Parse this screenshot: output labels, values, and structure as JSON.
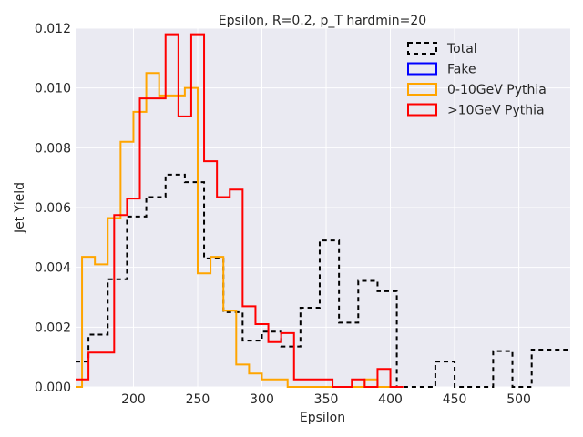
{
  "chart_data": {
    "type": "line",
    "title": "Epsilon, R=0.2, p_T hardmin=20",
    "xlabel": "Epsilon",
    "ylabel": "Jet Yield",
    "xlim": [
      155,
      540
    ],
    "ylim": [
      0,
      0.012
    ],
    "x_ticks": [
      200,
      250,
      300,
      350,
      400,
      450,
      500
    ],
    "y_ticks": [
      "0.000",
      "0.002",
      "0.004",
      "0.006",
      "0.008",
      "0.010",
      "0.012"
    ],
    "grid": true,
    "legend_position": "top-right",
    "series": [
      {
        "name": "Total",
        "color": "#000000",
        "style": "dashed",
        "steps": [
          [
            155,
            0.00085
          ],
          [
            165,
            0.00175
          ],
          [
            180,
            0.0036
          ],
          [
            195,
            0.0057
          ],
          [
            210,
            0.00635
          ],
          [
            225,
            0.0071
          ],
          [
            240,
            0.00685
          ],
          [
            255,
            0.0043
          ],
          [
            270,
            0.0025
          ],
          [
            285,
            0.00155
          ],
          [
            300,
            0.00185
          ],
          [
            315,
            0.00135
          ],
          [
            330,
            0.00265
          ],
          [
            345,
            0.0049
          ],
          [
            360,
            0.00215
          ],
          [
            375,
            0.00355
          ],
          [
            390,
            0.0032
          ],
          [
            405,
            0.0
          ],
          [
            420,
            0.0
          ],
          [
            435,
            0.00085
          ],
          [
            450,
            0.0
          ],
          [
            465,
            0.0
          ],
          [
            480,
            0.0012
          ],
          [
            495,
            0.0
          ],
          [
            510,
            0.00125
          ],
          [
            525,
            0.00125
          ],
          [
            540,
            0.00125
          ]
        ]
      },
      {
        "name": "Fake",
        "color": "#0000ff",
        "style": "solid",
        "steps": []
      },
      {
        "name": "0-10GeV Pythia",
        "color": "#ffa500",
        "style": "solid",
        "steps": [
          [
            155,
            0.0
          ],
          [
            160,
            0.00435
          ],
          [
            170,
            0.0041
          ],
          [
            180,
            0.00565
          ],
          [
            190,
            0.0082
          ],
          [
            200,
            0.0092
          ],
          [
            210,
            0.0105
          ],
          [
            220,
            0.00975
          ],
          [
            240,
            0.01
          ],
          [
            250,
            0.0038
          ],
          [
            260,
            0.00435
          ],
          [
            270,
            0.00255
          ],
          [
            280,
            0.00075
          ],
          [
            290,
            0.00045
          ],
          [
            300,
            0.00025
          ],
          [
            320,
            0.0
          ],
          [
            340,
            0.0
          ],
          [
            370,
            0.0
          ],
          [
            380,
            0.00025
          ],
          [
            390,
            0.0
          ],
          [
            400,
            0.0
          ]
        ]
      },
      {
        "name": ">10GeV Pythia",
        "color": "#ff0000",
        "style": "solid",
        "steps": [
          [
            155,
            0.00025
          ],
          [
            165,
            0.00115
          ],
          [
            185,
            0.00575
          ],
          [
            195,
            0.0063
          ],
          [
            205,
            0.00965
          ],
          [
            225,
            0.0118
          ],
          [
            235,
            0.00905
          ],
          [
            245,
            0.0118
          ],
          [
            255,
            0.00755
          ],
          [
            265,
            0.00635
          ],
          [
            275,
            0.0066
          ],
          [
            285,
            0.0027
          ],
          [
            295,
            0.0021
          ],
          [
            305,
            0.0015
          ],
          [
            315,
            0.0018
          ],
          [
            325,
            0.00025
          ],
          [
            340,
            0.00025
          ],
          [
            355,
            0.0
          ],
          [
            370,
            0.00025
          ],
          [
            380,
            0.0
          ],
          [
            390,
            0.0006
          ],
          [
            400,
            0.0
          ],
          [
            410,
            0.0
          ]
        ]
      }
    ]
  }
}
